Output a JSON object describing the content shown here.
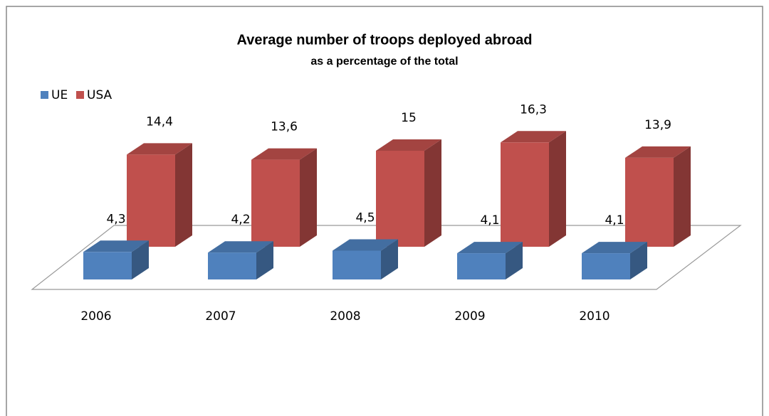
{
  "chart_data": {
    "type": "bar3d",
    "title": "Average number of troops deployed abroad",
    "subtitle": "as a percentage of the total",
    "categories": [
      "2006",
      "2007",
      "2008",
      "2009",
      "2010"
    ],
    "series": [
      {
        "name": "UE",
        "color": "#4f81bd",
        "values": [
          4.3,
          4.2,
          4.5,
          4.1,
          4.1
        ],
        "value_labels": [
          "4,3",
          "4,2",
          "4,5",
          "4,1",
          "4,1"
        ]
      },
      {
        "name": "USA",
        "color": "#c0504d",
        "values": [
          14.4,
          13.6,
          15,
          16.3,
          13.9
        ],
        "value_labels": [
          "14,4",
          "13,6",
          "15",
          "16,3",
          "13,9"
        ]
      }
    ],
    "legend": "top-left"
  }
}
